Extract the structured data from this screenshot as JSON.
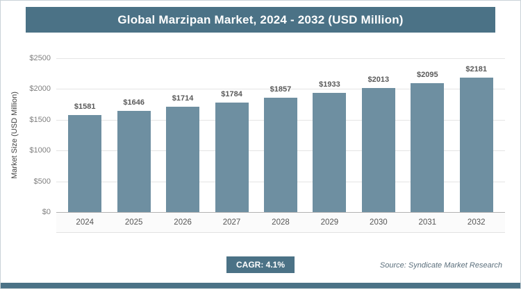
{
  "colors": {
    "accent": "#4b7286",
    "bar": "#6e8fa1",
    "gridline": "#e4e4e4"
  },
  "footer": {
    "cagr_label": "CAGR: 4.1%",
    "source": "Source: Syndicate Market Research"
  },
  "chart_data": {
    "type": "bar",
    "title": "Global Marzipan Market, 2024 - 2032 (USD Million)",
    "xlabel": "",
    "ylabel": "Market Size (USD Million)",
    "categories": [
      "2024",
      "2025",
      "2026",
      "2027",
      "2028",
      "2029",
      "2030",
      "2031",
      "2032"
    ],
    "values": [
      1581,
      1646,
      1714,
      1784,
      1857,
      1933,
      2013,
      2095,
      2181
    ],
    "value_labels": [
      "$1581",
      "$1646",
      "$1714",
      "$1784",
      "$1857",
      "$1933",
      "$2013",
      "$2095",
      "$2181"
    ],
    "ylim": [
      0,
      2500
    ],
    "yticks": [
      0,
      500,
      1000,
      1500,
      2000,
      2500
    ],
    "ytick_labels": [
      "$0",
      "$500",
      "$1000",
      "$1500",
      "$2000",
      "$2500"
    ],
    "grid": true,
    "legend": false,
    "bar_color": "#6e8fa1"
  }
}
